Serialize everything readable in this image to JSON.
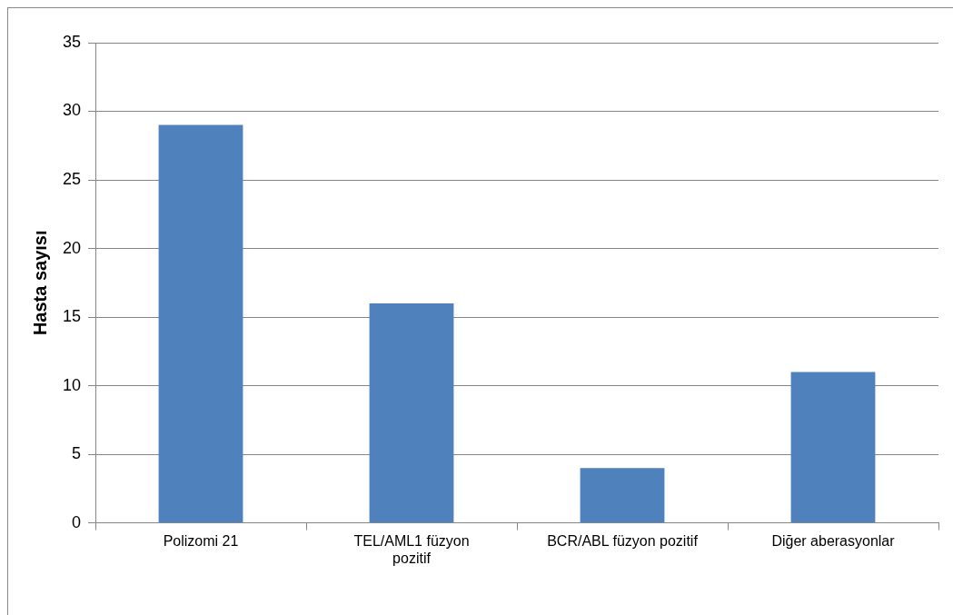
{
  "chart_data": {
    "type": "bar",
    "ylabel": "Hasta sayısı",
    "categories": [
      "Polizomi 21",
      "TEL/AML1 füzyon pozitif",
      "BCR/ABL füzyon pozitif",
      "Diğer aberasyonlar"
    ],
    "values": [
      29,
      16,
      4,
      11
    ],
    "color": "#4f81bd",
    "ylim": [
      0,
      35
    ],
    "yticks": [
      0,
      5,
      10,
      15,
      20,
      25,
      30,
      35
    ],
    "grid": "y",
    "legend": false
  }
}
